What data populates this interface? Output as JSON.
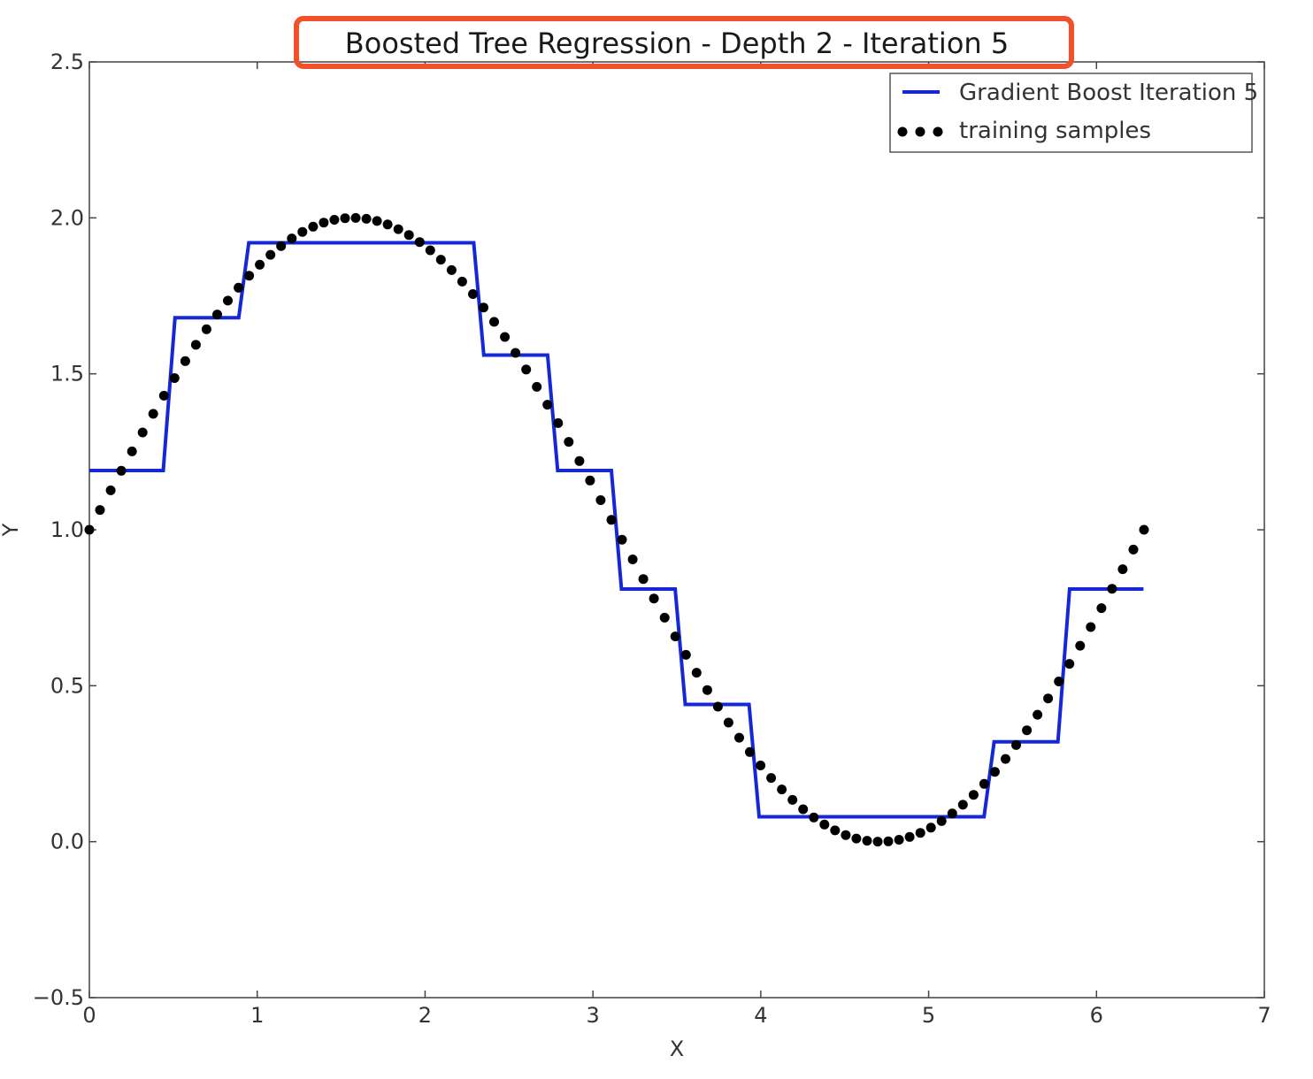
{
  "colors": {
    "fit_line": "#1528d6",
    "samples": "#000000",
    "highlight": "#f0512b",
    "frame": "#444444"
  },
  "chart_data": {
    "type": "line",
    "title": "Boosted Tree Regression - Depth 2 - Iteration 5",
    "xlabel": "X",
    "ylabel": "Y",
    "xlim": [
      0,
      7
    ],
    "ylim": [
      -0.5,
      2.5
    ],
    "xticks": [
      0,
      1,
      2,
      3,
      4,
      5,
      6,
      7
    ],
    "yticks": [
      -0.5,
      0.0,
      0.5,
      1.0,
      1.5,
      2.0,
      2.5
    ],
    "xtick_labels": [
      "0",
      "1",
      "2",
      "3",
      "4",
      "5",
      "6",
      "7"
    ],
    "ytick_labels": [
      "−0.5",
      "0.0",
      "0.5",
      "1.0",
      "1.5",
      "2.0",
      "2.5"
    ],
    "grid": false,
    "legend_position": "top-right",
    "series": [
      {
        "name": "Gradient Boost Iteration 5",
        "kind": "step-line",
        "color": "#1528d6",
        "points": [
          [
            0.0,
            1.19
          ],
          [
            0.44,
            1.19
          ],
          [
            0.51,
            1.68
          ],
          [
            0.89,
            1.68
          ],
          [
            0.95,
            1.92
          ],
          [
            2.29,
            1.92
          ],
          [
            2.35,
            1.56
          ],
          [
            2.73,
            1.56
          ],
          [
            2.79,
            1.19
          ],
          [
            3.11,
            1.19
          ],
          [
            3.17,
            0.81
          ],
          [
            3.49,
            0.81
          ],
          [
            3.55,
            0.44
          ],
          [
            3.93,
            0.44
          ],
          [
            3.99,
            0.08
          ],
          [
            5.33,
            0.08
          ],
          [
            5.39,
            0.32
          ],
          [
            5.77,
            0.32
          ],
          [
            5.84,
            0.81
          ],
          [
            6.28,
            0.81
          ]
        ]
      },
      {
        "name": "training samples",
        "kind": "scatter",
        "color": "#000000",
        "function": "sin(x) + 1",
        "x_range": [
          0,
          6.2832
        ],
        "count": 100
      }
    ]
  }
}
